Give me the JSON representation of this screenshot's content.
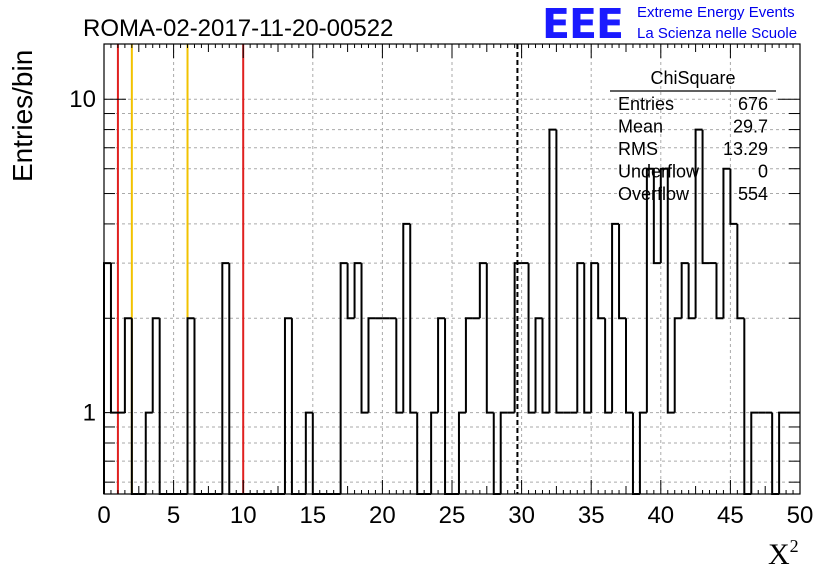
{
  "logo": {
    "mark": "EEE",
    "line1": "Extreme Energy Events",
    "line2": "La Scienza nelle Scuole"
  },
  "chart_data": {
    "type": "histogram",
    "title": "ROMA-02-2017-11-20-00522",
    "xlabel": "X",
    "xlabel_superscript": "2",
    "ylabel": "Entries/bin",
    "xlim": [
      0,
      50
    ],
    "ylim": [
      0.55,
      15
    ],
    "y_scale": "log",
    "grid": true,
    "bin_width": 0.5,
    "x_ticks": [
      "0",
      "5",
      "10",
      "15",
      "20",
      "25",
      "30",
      "35",
      "40",
      "45",
      "50"
    ],
    "y_ticks": [
      "1",
      "10"
    ],
    "bins": [
      [
        0.0,
        3
      ],
      [
        0.5,
        1
      ],
      [
        1.0,
        1
      ],
      [
        1.5,
        2
      ],
      [
        2.0,
        0
      ],
      [
        2.5,
        0
      ],
      [
        3.0,
        1
      ],
      [
        3.5,
        2
      ],
      [
        4.0,
        0
      ],
      [
        4.5,
        0
      ],
      [
        5.0,
        0
      ],
      [
        5.5,
        0
      ],
      [
        6.0,
        2
      ],
      [
        6.5,
        0
      ],
      [
        7.0,
        0
      ],
      [
        7.5,
        0
      ],
      [
        8.0,
        0
      ],
      [
        8.5,
        3
      ],
      [
        9.0,
        0
      ],
      [
        9.5,
        0
      ],
      [
        10.0,
        0
      ],
      [
        10.5,
        0
      ],
      [
        11.0,
        0
      ],
      [
        11.5,
        0
      ],
      [
        12.0,
        0
      ],
      [
        12.5,
        0
      ],
      [
        13.0,
        2
      ],
      [
        13.5,
        0
      ],
      [
        14.0,
        0
      ],
      [
        14.5,
        1
      ],
      [
        15.0,
        0
      ],
      [
        15.5,
        0
      ],
      [
        16.0,
        0
      ],
      [
        16.5,
        0
      ],
      [
        17.0,
        3
      ],
      [
        17.5,
        2
      ],
      [
        18.0,
        3
      ],
      [
        18.5,
        1
      ],
      [
        19.0,
        2
      ],
      [
        19.5,
        2
      ],
      [
        20.0,
        2
      ],
      [
        20.5,
        2
      ],
      [
        21.0,
        1
      ],
      [
        21.5,
        4
      ],
      [
        22.0,
        1
      ],
      [
        22.5,
        0
      ],
      [
        23.0,
        0
      ],
      [
        23.5,
        1
      ],
      [
        24.0,
        2
      ],
      [
        24.5,
        0
      ],
      [
        25.0,
        0
      ],
      [
        25.5,
        1
      ],
      [
        26.0,
        2
      ],
      [
        26.5,
        2
      ],
      [
        27.0,
        3
      ],
      [
        27.5,
        1
      ],
      [
        28.0,
        0
      ],
      [
        28.5,
        1
      ],
      [
        29.0,
        1
      ],
      [
        29.5,
        3
      ],
      [
        30.0,
        3
      ],
      [
        30.5,
        1
      ],
      [
        31.0,
        2
      ],
      [
        31.5,
        1
      ],
      [
        32.0,
        8
      ],
      [
        32.5,
        1
      ],
      [
        33.0,
        1
      ],
      [
        33.5,
        1
      ],
      [
        34.0,
        3
      ],
      [
        34.5,
        1
      ],
      [
        35.0,
        3
      ],
      [
        35.5,
        2
      ],
      [
        36.0,
        1
      ],
      [
        36.5,
        4
      ],
      [
        37.0,
        2
      ],
      [
        37.5,
        1
      ],
      [
        38.0,
        0
      ],
      [
        38.5,
        1
      ],
      [
        39.0,
        6
      ],
      [
        39.5,
        3
      ],
      [
        40.0,
        6
      ],
      [
        40.5,
        1
      ],
      [
        41.0,
        2
      ],
      [
        41.5,
        3
      ],
      [
        42.0,
        2
      ],
      [
        42.5,
        8
      ],
      [
        43.0,
        3
      ],
      [
        43.5,
        3
      ],
      [
        44.0,
        2
      ],
      [
        44.5,
        6
      ],
      [
        45.0,
        4
      ],
      [
        45.5,
        2
      ],
      [
        46.0,
        0
      ],
      [
        46.5,
        1
      ],
      [
        47.0,
        1
      ],
      [
        47.5,
        1
      ],
      [
        48.0,
        0
      ],
      [
        48.5,
        1
      ],
      [
        49.0,
        1
      ],
      [
        49.5,
        1
      ]
    ],
    "vertical_lines": [
      {
        "x": 1,
        "color": "#e0201f",
        "style": "solid"
      },
      {
        "x": 2,
        "color": "#f2c200",
        "style": "solid"
      },
      {
        "x": 6,
        "color": "#f2c200",
        "style": "solid"
      },
      {
        "x": 10,
        "color": "#e0201f",
        "style": "solid"
      },
      {
        "x": 29.7,
        "color": "#000000",
        "style": "dashed"
      }
    ],
    "stats_box": {
      "title": "ChiSquare",
      "rows": [
        {
          "label": "Entries",
          "value": "676"
        },
        {
          "label": "Mean",
          "value": "29.7"
        },
        {
          "label": "RMS",
          "value": "13.29"
        },
        {
          "label": "Underflow",
          "value": "0"
        },
        {
          "label": "Overflow",
          "value": "554"
        }
      ]
    }
  }
}
